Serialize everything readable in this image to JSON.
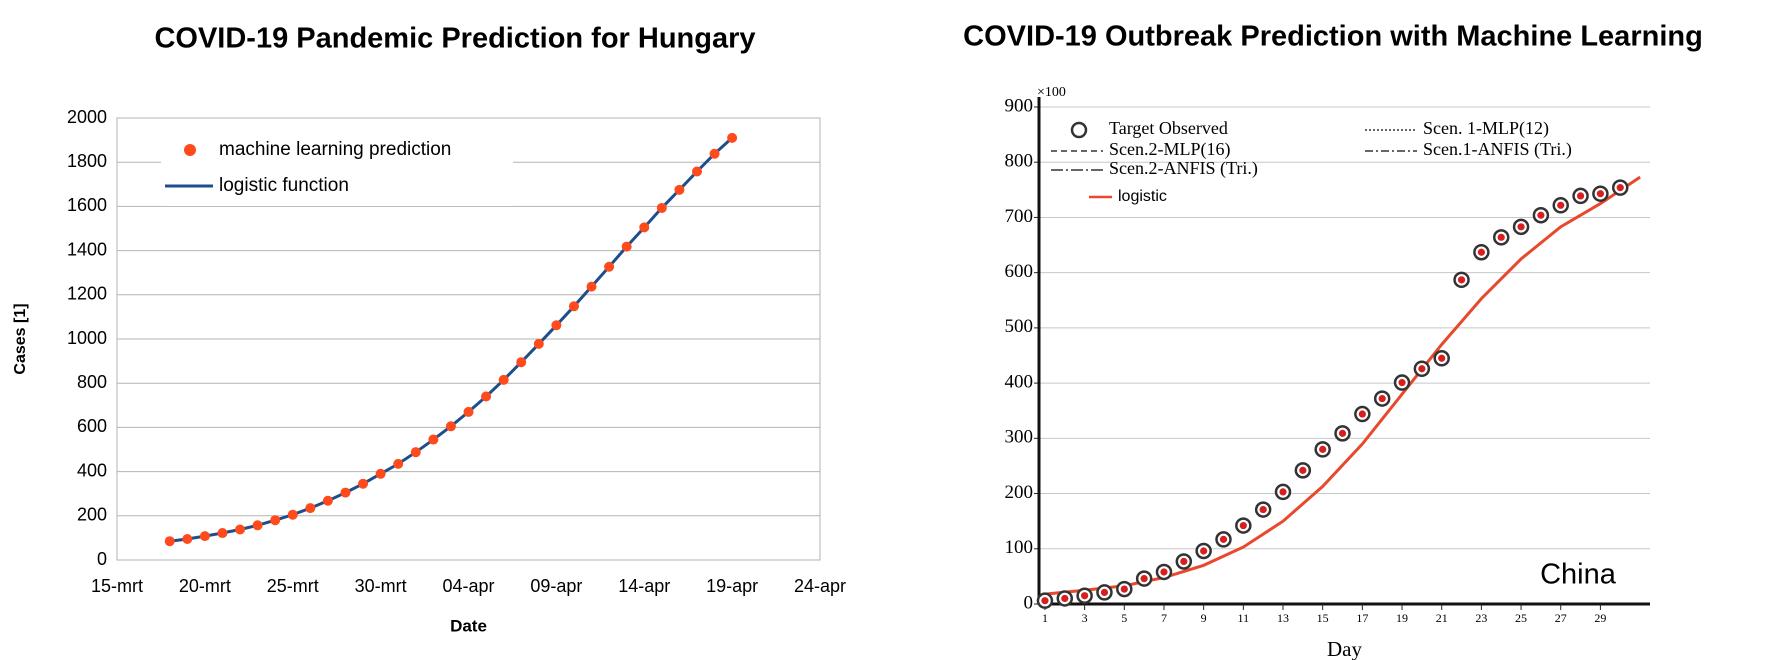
{
  "chart_data": [
    {
      "type": "line",
      "title": "COVID-19 Pandemic Prediction for Hungary",
      "x_label": "Date",
      "y_label": "Cases [1]",
      "categories": [
        "15-mrt",
        null,
        null,
        null,
        null,
        "20-mrt",
        null,
        null,
        null,
        null,
        "25-mrt",
        null,
        null,
        null,
        null,
        "30-mrt",
        null,
        null,
        null,
        null,
        "04-apr",
        null,
        null,
        null,
        null,
        "09-apr",
        null,
        null,
        null,
        null,
        "14-apr",
        null,
        null,
        null,
        null,
        "19-apr",
        null,
        null,
        null,
        null,
        "24-apr"
      ],
      "series": [
        {
          "name": "machine learning prediction",
          "color": "#ff4a1c",
          "style": "markers",
          "values": [
            null,
            null,
            null,
            85,
            95,
            108,
            122,
            138,
            157,
            180,
            205,
            235,
            268,
            305,
            345,
            390,
            435,
            488,
            545,
            605,
            670,
            740,
            815,
            895,
            978,
            1062,
            1148,
            1237,
            1327,
            1418,
            1505,
            1593,
            1675,
            1758,
            1838,
            1910,
            null,
            null,
            null,
            null,
            null
          ]
        },
        {
          "name": "logistic function",
          "color": "#1f4e8c",
          "style": "line",
          "values": [
            null,
            null,
            null,
            85,
            95,
            108,
            122,
            138,
            157,
            180,
            205,
            235,
            268,
            305,
            345,
            390,
            435,
            488,
            545,
            605,
            670,
            740,
            815,
            895,
            978,
            1062,
            1148,
            1237,
            1327,
            1418,
            1505,
            1593,
            1675,
            1758,
            1838,
            1910,
            null,
            null,
            null,
            null,
            null
          ]
        }
      ],
      "ylim": [
        0,
        2000
      ],
      "yticks": [
        0,
        200,
        400,
        600,
        800,
        1000,
        1200,
        1400,
        1600,
        1800,
        2000
      ],
      "grid": true,
      "legend": "upper left"
    },
    {
      "type": "line",
      "title": "COVID-19 Outbreak Prediction with Machine Learning",
      "x_label": "Day",
      "y_unit_label": "×100",
      "annotation": "China",
      "series": [
        {
          "name": "Target Observed",
          "color": "#d62020",
          "style": "ring-markers",
          "x": [
            1,
            2,
            3,
            4,
            5,
            6,
            7,
            8,
            9,
            10,
            11,
            12,
            13,
            14,
            15,
            16,
            17,
            18,
            19,
            20,
            21,
            22,
            23,
            24,
            25,
            26,
            27,
            28,
            29,
            30
          ],
          "values": [
            6,
            10,
            15,
            21,
            27,
            46,
            58,
            77,
            96,
            117,
            142,
            171,
            203,
            242,
            280,
            309,
            344,
            372,
            401,
            426,
            445,
            587,
            637,
            664,
            683,
            704,
            722,
            739,
            743,
            754
          ]
        },
        {
          "name": "logistic",
          "color": "#e8482c",
          "style": "line",
          "x": [
            1,
            3,
            5,
            7,
            9,
            11,
            13,
            15,
            17,
            19,
            21,
            23,
            25,
            27,
            29,
            31
          ],
          "values": [
            18,
            25,
            33,
            48,
            70,
            103,
            150,
            213,
            290,
            380,
            470,
            553,
            625,
            683,
            725,
            773
          ]
        }
      ],
      "legend_only": [
        {
          "name": "Scen. 1-MLP(12)",
          "dash": "2,2"
        },
        {
          "name": "Scen.2-MLP(16)",
          "dash": "6,4"
        },
        {
          "name": "Scen.1-ANFIS (Tri.)",
          "dash": "8,3,2,3"
        },
        {
          "name": "Scen.2-ANFIS (Tri.)",
          "dash": "12,3,2,3"
        }
      ],
      "xlim": [
        0.7,
        31.5
      ],
      "xticks": [
        1,
        3,
        5,
        7,
        9,
        11,
        13,
        15,
        17,
        19,
        21,
        23,
        25,
        27,
        29
      ],
      "ylim": [
        0,
        900
      ],
      "yticks": [
        0,
        100,
        200,
        300,
        400,
        500,
        600,
        700,
        800,
        900
      ],
      "grid": true
    }
  ]
}
